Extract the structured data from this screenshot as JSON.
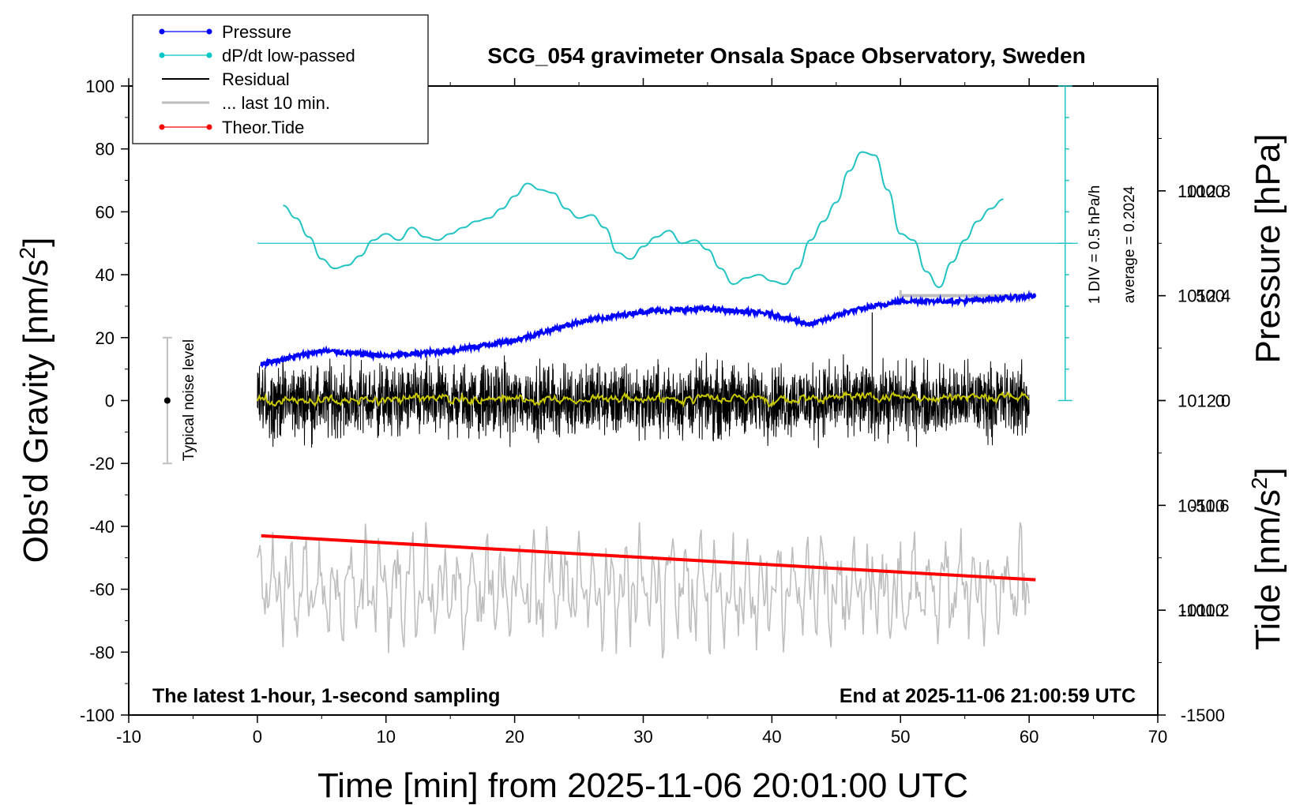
{
  "chart_data": {
    "type": "line",
    "title": "SCG_054 gravimeter Onsala Space Observatory, Sweden",
    "xlabel": "Time [min] from 2025-11-06 20:01:00 UTC",
    "ylabel_left_main": "Obs'd Gravity [nm/s",
    "ylabel_left_sup": "2",
    "ylabel_left_end": "]",
    "ylabel_right_pressure": "Pressure [hPa]",
    "ylabel_right_tide_main": "Tide [nm/s",
    "ylabel_right_tide_sup": "2",
    "ylabel_right_tide_end": "]",
    "xlim": [
      -10,
      70
    ],
    "ylim": [
      -100,
      100
    ],
    "pressure_lim": [
      1010.8,
      1013.2
    ],
    "tide_lim": [
      -1500,
      1500
    ],
    "x_ticks": [
      "-10",
      "0",
      "10",
      "20",
      "30",
      "40",
      "50",
      "60",
      "70"
    ],
    "y_ticks": [
      "-100",
      "-80",
      "-60",
      "-40",
      "-20",
      "0",
      "20",
      "40",
      "60",
      "80",
      "100"
    ],
    "pressure_ticks": [
      "1011.2",
      "1011.6",
      "1012.0",
      "1012.4",
      "1012.8"
    ],
    "tide_ticks": [
      "-1500",
      "-1000",
      "-500",
      "0",
      "500",
      "1000"
    ],
    "legend": [
      {
        "label": "Pressure",
        "color": "#0000ff",
        "marker": true
      },
      {
        "label": "dP/dt low-passed",
        "color": "#00c8c8",
        "marker": true
      },
      {
        "label": "Residual",
        "color": "#000000",
        "marker": false
      },
      {
        "label": "... last 10 min.",
        "color": "#bebebe",
        "marker": false
      },
      {
        "label": "Theor.Tide",
        "color": "#ff0000",
        "marker": true
      }
    ],
    "colors": {
      "pressure": "#0000ff",
      "dpdt": "#22c3c3",
      "residual": "#000000",
      "residual_smooth": "#c8c800",
      "last10": "#bebebe",
      "tide": "#ff0000"
    },
    "series": {
      "pressure": {
        "name": "Pressure",
        "x": [
          0.3,
          5,
          10,
          15,
          20,
          25,
          30,
          35,
          40,
          43,
          46,
          50,
          55,
          60.5
        ],
        "y": [
          1012.14,
          1012.19,
          1012.17,
          1012.19,
          1012.23,
          1012.3,
          1012.34,
          1012.35,
          1012.33,
          1012.29,
          1012.34,
          1012.38,
          1012.38,
          1012.4
        ]
      },
      "dpdt": {
        "name": "dP/dt low-passed",
        "x": [
          2,
          3,
          4,
          5,
          6,
          7,
          8,
          9,
          10,
          11,
          12,
          13,
          14,
          15,
          16,
          17,
          18,
          19,
          20,
          21,
          22,
          23,
          24,
          25,
          26,
          27,
          28,
          29,
          30,
          31,
          32,
          33,
          34,
          35,
          36,
          37,
          38,
          39,
          40,
          41,
          42,
          43,
          44,
          45,
          46,
          47,
          48,
          49,
          50,
          51,
          52,
          53,
          54,
          55,
          56,
          57,
          58
        ],
        "y": [
          62,
          58,
          52,
          45,
          42,
          43,
          46,
          51,
          53,
          51,
          55,
          52,
          51,
          53,
          55,
          57,
          58,
          61,
          65,
          69,
          67,
          66,
          61,
          58,
          59,
          55,
          47,
          45,
          49,
          52,
          54,
          50,
          51,
          48,
          42,
          37,
          39,
          40,
          38,
          37,
          42,
          51,
          57,
          63,
          73,
          79,
          78,
          67,
          53,
          51,
          41,
          36,
          44,
          51,
          57,
          61,
          64
        ]
      },
      "residual": {
        "name": "Residual",
        "x_range": [
          0,
          60
        ],
        "mean": 0,
        "range": [
          -25,
          28
        ]
      },
      "last10": {
        "name": "... last 10 min.",
        "x_range": [
          0,
          60
        ],
        "center": -60
      },
      "tide": {
        "name": "Theor.Tide",
        "x": [
          0.3,
          60.5
        ],
        "y": [
          -43,
          -57
        ]
      }
    },
    "annotations": {
      "noise_level": "Typical noise level",
      "div_label": "1 DIV = 0.5 hPa/h",
      "average_label": "average = 0.2024",
      "bottom_left": "The latest 1-hour, 1-second sampling",
      "bottom_right": "End at 2025-11-06 21:00:59 UTC"
    }
  }
}
